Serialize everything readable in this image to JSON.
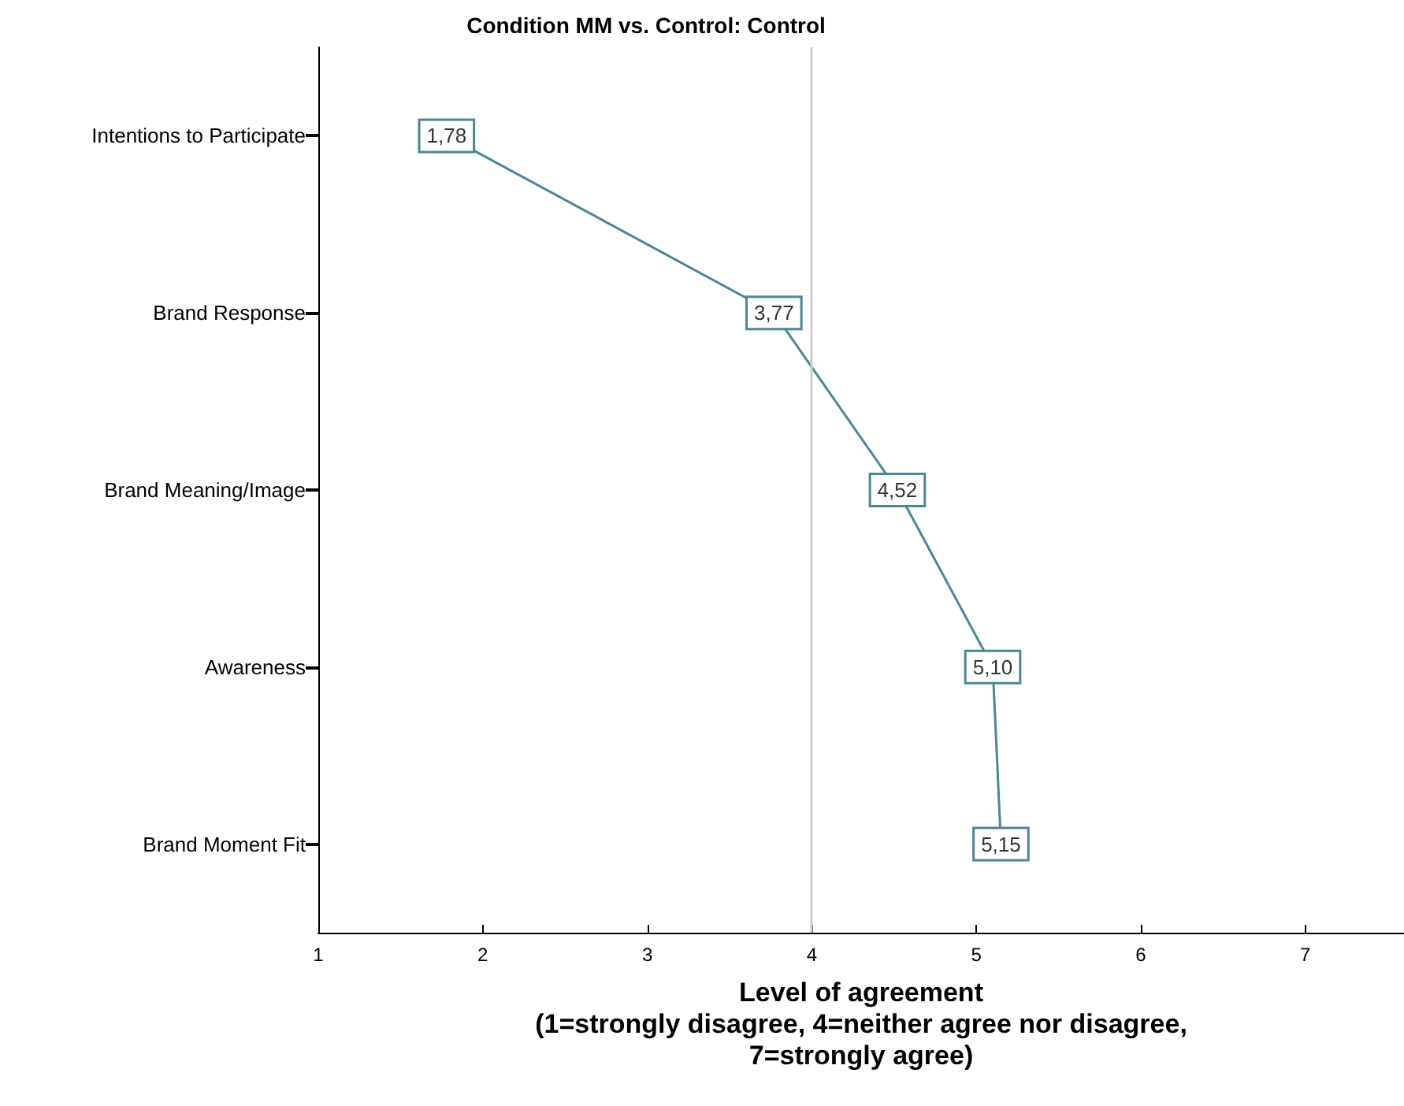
{
  "chart_data": {
    "type": "line",
    "orientation": "horizontal",
    "title": "Condition MM vs. Control: Control",
    "xlabel": "Level of agreement\n(1=strongly disagree, 4=neither agree nor disagree,\n7=strongly agree)",
    "categories": [
      "Intentions to Participate",
      "Brand Response",
      "Brand Meaning/Image",
      "Awareness",
      "Brand Moment Fit"
    ],
    "series": [
      {
        "color": "#4a8796",
        "values": [
          1.78,
          3.77,
          4.52,
          5.1,
          5.15
        ],
        "value_labels": [
          "1,78",
          "3,77",
          "4,52",
          "5,10",
          "5,15"
        ]
      }
    ],
    "xlim": [
      1,
      7.6
    ],
    "xticks": [
      1,
      2,
      3,
      4,
      5,
      6,
      7
    ],
    "ref_lines": [
      {
        "axis": "x",
        "value": 4,
        "color": "#cccccc"
      }
    ],
    "grid": false,
    "marker": "square"
  }
}
